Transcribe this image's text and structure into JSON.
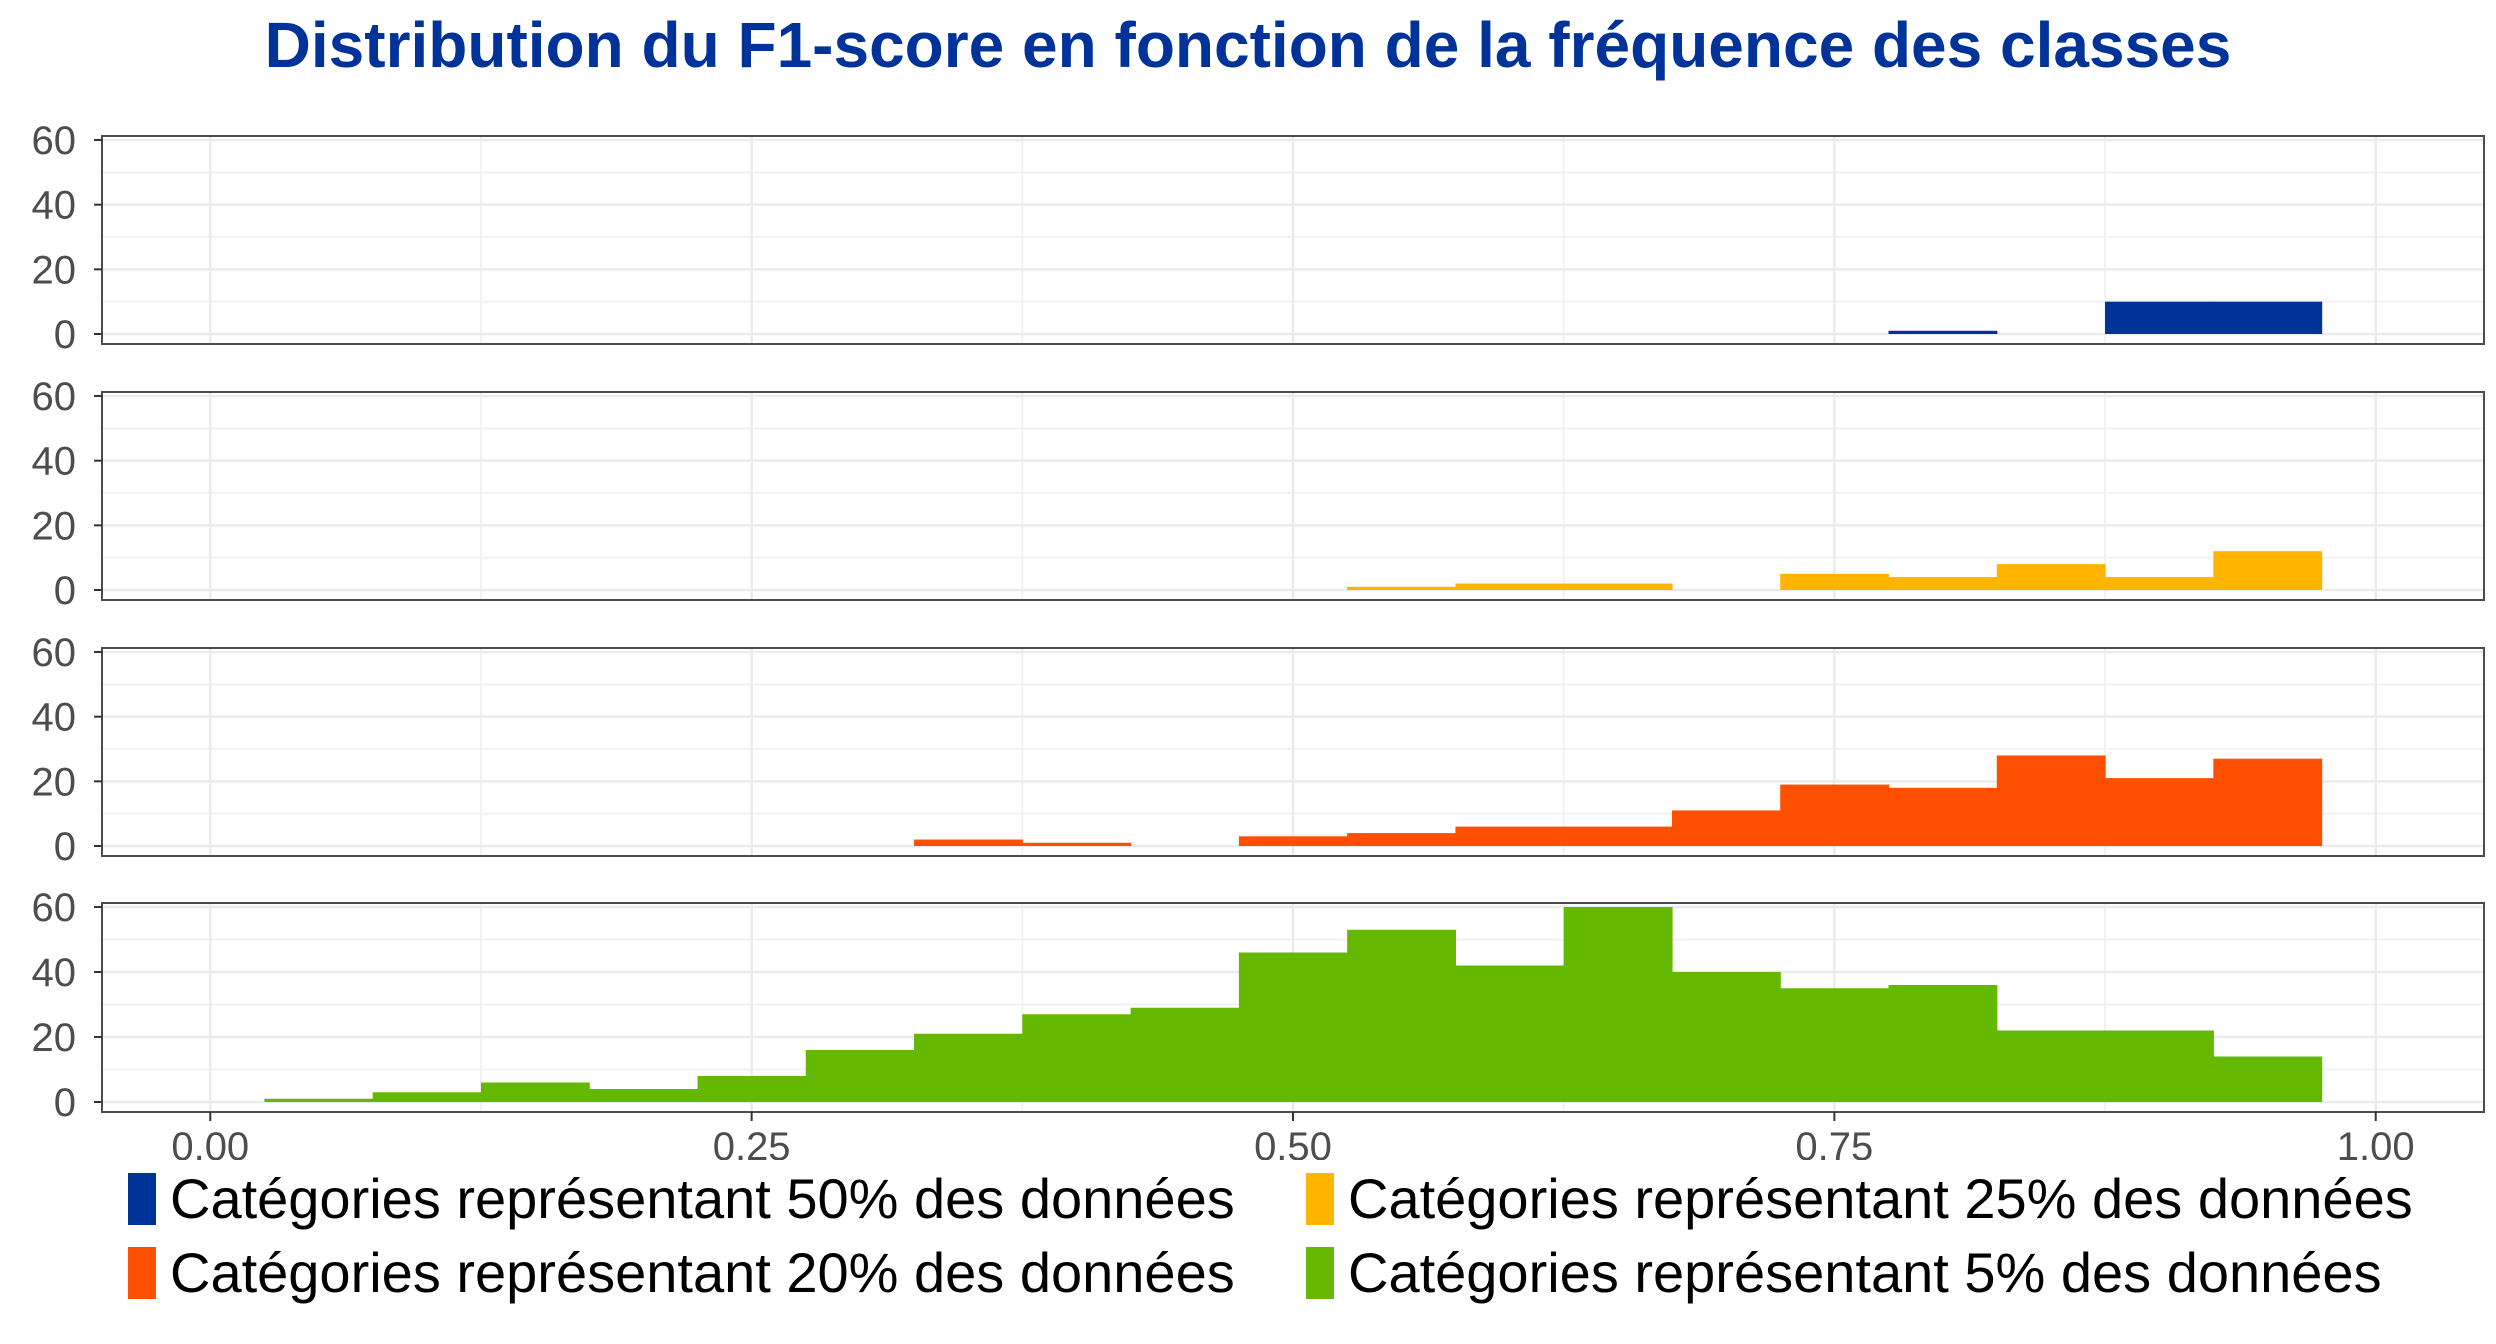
{
  "chart_data": {
    "type": "bar",
    "title": "Distribution du F1-score en fonction de la fréquence des classes",
    "xlabel": "",
    "ylabel": "",
    "xlim": [
      -0.05,
      1.05
    ],
    "ylim": [
      0,
      62
    ],
    "bin_width": 0.05,
    "x_ticks": [
      "0.00",
      "0.25",
      "0.50",
      "0.75",
      "1.00"
    ],
    "y_ticks": [
      "0",
      "20",
      "40",
      "60"
    ],
    "grid": true,
    "legend_position": "bottom",
    "bin_centers": [
      0.05,
      0.1,
      0.15,
      0.2,
      0.25,
      0.3,
      0.35,
      0.4,
      0.45,
      0.5,
      0.55,
      0.6,
      0.65,
      0.7,
      0.75,
      0.8,
      0.85,
      0.9,
      0.95
    ],
    "series": [
      {
        "name": "Catégories représentant 50% des données",
        "color": "#00339A",
        "values": [
          0,
          0,
          0,
          0,
          0,
          0,
          0,
          0,
          0,
          0,
          0,
          0,
          0,
          0,
          0,
          1,
          0,
          10,
          10
        ]
      },
      {
        "name": "Catégories représentant 25% des données",
        "color": "#FFB400",
        "values": [
          0,
          0,
          0,
          0,
          0,
          0,
          0,
          0,
          0,
          0,
          1,
          2,
          2,
          0,
          5,
          4,
          8,
          4,
          12
        ]
      },
      {
        "name": "Catégories représentant 20% des données",
        "color": "#FF4F00",
        "values": [
          0,
          0,
          0,
          0,
          0,
          0,
          2,
          1,
          0,
          3,
          4,
          6,
          6,
          11,
          19,
          18,
          28,
          21,
          27
        ]
      },
      {
        "name": "Catégories représentant 5% des données",
        "color": "#64B800",
        "values": [
          1,
          3,
          6,
          4,
          8,
          16,
          21,
          27,
          29,
          46,
          53,
          42,
          60,
          40,
          35,
          36,
          22,
          22,
          14
        ]
      }
    ]
  }
}
